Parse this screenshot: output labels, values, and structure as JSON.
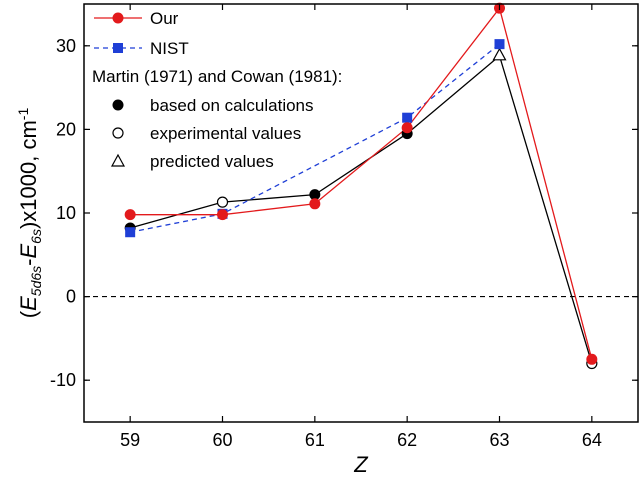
{
  "chart_data": {
    "type": "line",
    "title": "",
    "xlabel": "Z",
    "ylabel": {
      "open": "(",
      "e1": "E",
      "e1_sub": "5d6s",
      "minus": "-",
      "e2": "E",
      "e2_sub": "6s",
      "rest": ")x1000, cm",
      "sup": "-1"
    },
    "x": [
      59,
      60,
      61,
      62,
      63,
      64
    ],
    "xlim": [
      58.5,
      64.5
    ],
    "ylim": [
      -15,
      35
    ],
    "x_ticks": [
      "59",
      "60",
      "61",
      "62",
      "63",
      "64"
    ],
    "y_ticks": [
      "-10",
      "0",
      "10",
      "20",
      "30"
    ],
    "zero_line": "dashed",
    "grid": false,
    "legend_position": "top-left",
    "series": [
      {
        "name": "Our",
        "color": "#e31a1c",
        "line": "solid",
        "marker": "circle-filled",
        "values": [
          9.8,
          9.8,
          11.1,
          20.2,
          34.5,
          -7.5
        ]
      },
      {
        "name": "NIST",
        "color": "#1f3fd6",
        "line": "dashed",
        "marker": "square-filled",
        "values": [
          7.7,
          9.9,
          null,
          21.4,
          30.2,
          null
        ]
      },
      {
        "name": "Martin (1971) and Cowan (1981)",
        "color": "#000000",
        "line": "solid",
        "values": [
          8.2,
          11.3,
          12.2,
          19.5,
          28.8,
          -8.0
        ],
        "marker_types": [
          "calc",
          "exp",
          "calc",
          "calc",
          "pred",
          "exp"
        ]
      }
    ],
    "legend": {
      "our": "Our",
      "nist": "NIST",
      "header": "Martin (1971) and Cowan (1981):",
      "calc": "based on calculations",
      "exp": "experimental values",
      "pred": "predicted values"
    }
  }
}
